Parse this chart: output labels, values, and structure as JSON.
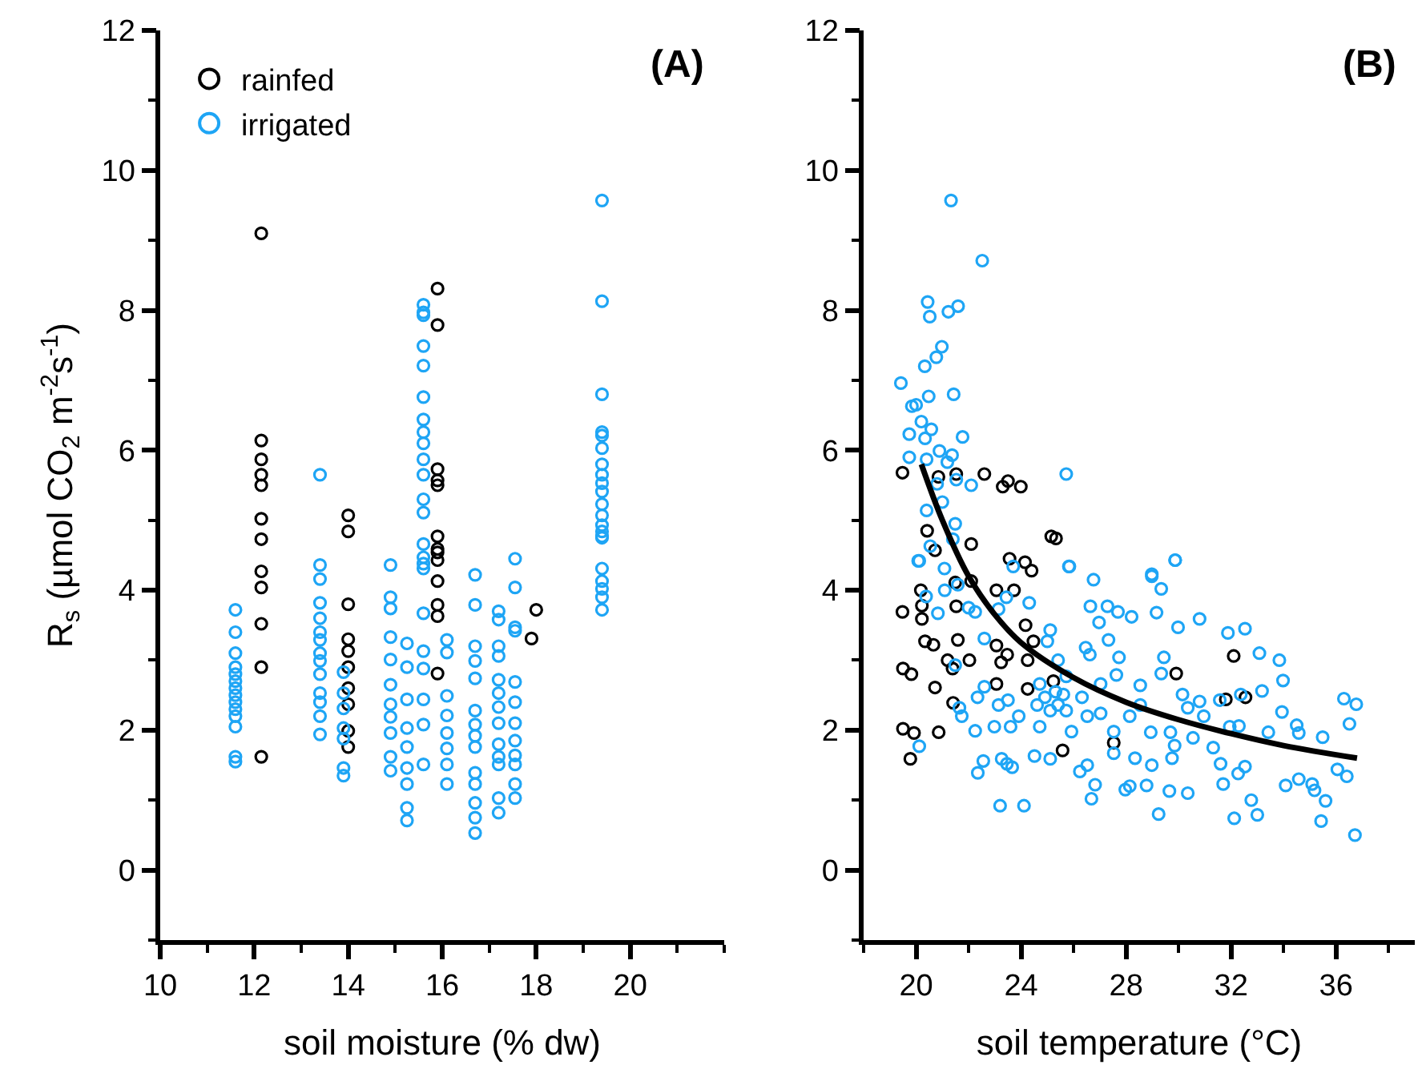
{
  "chart_data": [
    {
      "type": "scatter",
      "xlabel": "soil moisture (% dw)",
      "ylabel": "R$_{s}$ (µmol CO$_{2}$ m$^{-2}$s$^{-1}$)",
      "annotations": [
        "(A)"
      ],
      "xlim": [
        10,
        22
      ],
      "xticks": [
        10,
        12,
        14,
        16,
        18,
        20
      ],
      "ylim": [
        -1,
        12
      ],
      "yticks": [
        0,
        2,
        4,
        6,
        8,
        10,
        12
      ],
      "legend": "top left",
      "marker": "circle",
      "series": [
        {
          "name": "rainfed",
          "color": "#000000",
          "x": [
            12.15,
            12.15,
            12.15,
            12.15,
            12.15,
            12.15,
            12.15,
            12.15,
            12.15,
            12.15,
            12.15,
            12.15,
            14.0,
            14.0,
            14.0,
            14.0,
            14.0,
            14.0,
            14.0,
            14.0,
            14.0,
            14.0,
            15.9,
            15.9,
            15.9,
            15.9,
            15.9,
            15.9,
            15.9,
            15.9,
            15.9,
            15.9,
            15.9,
            15.9,
            15.9,
            17.9,
            18.0
          ],
          "values": [
            9.1,
            6.14,
            5.87,
            5.65,
            5.5,
            5.02,
            4.73,
            4.27,
            4.04,
            3.52,
            2.9,
            1.62,
            5.07,
            4.84,
            3.8,
            3.3,
            3.13,
            2.9,
            2.6,
            2.37,
            1.99,
            1.76,
            8.31,
            7.79,
            5.73,
            5.57,
            5.5,
            4.77,
            4.54,
            4.43,
            4.59,
            4.13,
            3.79,
            3.63,
            2.81,
            3.31,
            3.72
          ]
        },
        {
          "name": "irrigated",
          "color": "#1ea5f5",
          "x": [
            11.6,
            11.6,
            11.6,
            11.6,
            11.6,
            11.6,
            11.6,
            11.6,
            11.6,
            11.6,
            11.6,
            11.6,
            11.6,
            11.6,
            13.4,
            13.4,
            13.4,
            13.4,
            13.4,
            13.4,
            13.4,
            13.4,
            13.4,
            13.4,
            13.4,
            13.4,
            13.4,
            13.4,
            13.9,
            13.9,
            13.9,
            13.9,
            13.9,
            13.9,
            13.9,
            14.9,
            14.9,
            14.9,
            14.9,
            14.9,
            14.9,
            14.9,
            14.9,
            14.9,
            14.9,
            14.9,
            15.25,
            15.25,
            15.25,
            15.25,
            15.25,
            15.25,
            15.25,
            15.25,
            15.25,
            15.6,
            15.6,
            15.6,
            15.6,
            15.6,
            15.6,
            15.6,
            15.6,
            15.6,
            15.6,
            15.6,
            15.6,
            15.6,
            15.6,
            15.6,
            15.6,
            15.6,
            15.6,
            15.6,
            15.6,
            15.6,
            15.6,
            15.6,
            16.1,
            16.1,
            16.1,
            16.1,
            16.1,
            16.1,
            16.1,
            16.1,
            16.7,
            16.7,
            16.7,
            16.7,
            16.7,
            16.7,
            16.7,
            16.7,
            16.7,
            16.7,
            16.7,
            16.7,
            16.7,
            16.7,
            17.2,
            17.2,
            17.2,
            17.2,
            17.2,
            17.2,
            17.2,
            17.2,
            17.2,
            17.2,
            17.2,
            17.2,
            17.2,
            17.55,
            17.55,
            17.55,
            17.55,
            17.55,
            17.55,
            17.55,
            17.55,
            17.55,
            17.55,
            17.55,
            17.55,
            19.4,
            19.4,
            19.4,
            19.4,
            19.4,
            19.4,
            19.4,
            19.4,
            19.4,
            19.4,
            19.4,
            19.4,
            19.4,
            19.4,
            19.4,
            19.4,
            19.4,
            19.4,
            19.4,
            19.4,
            19.4
          ],
          "values": [
            3.72,
            3.4,
            3.1,
            2.9,
            2.8,
            2.7,
            2.6,
            2.5,
            2.4,
            2.3,
            2.2,
            2.05,
            1.62,
            1.55,
            5.65,
            4.36,
            4.16,
            3.82,
            3.6,
            3.4,
            3.29,
            3.1,
            2.99,
            2.8,
            2.53,
            2.4,
            2.2,
            1.94,
            2.83,
            2.53,
            2.31,
            2.03,
            1.88,
            1.46,
            1.35,
            4.36,
            3.9,
            3.74,
            3.33,
            3.01,
            2.65,
            2.37,
            2.19,
            1.96,
            1.62,
            1.42,
            3.24,
            2.9,
            2.44,
            2.03,
            1.76,
            1.46,
            1.23,
            0.89,
            0.71,
            8.08,
            7.97,
            7.93,
            7.49,
            7.21,
            6.76,
            6.44,
            6.26,
            6.1,
            5.87,
            5.65,
            5.3,
            5.11,
            4.66,
            4.47,
            4.31,
            4.38,
            3.67,
            3.13,
            2.88,
            2.44,
            2.08,
            1.51,
            3.29,
            3.11,
            2.49,
            2.21,
            1.96,
            1.74,
            1.51,
            1.23,
            4.22,
            3.79,
            3.2,
            2.99,
            2.74,
            2.28,
            2.08,
            1.92,
            1.76,
            1.39,
            1.23,
            0.96,
            0.75,
            0.53,
            3.7,
            3.58,
            3.2,
            3.06,
            2.72,
            2.53,
            2.33,
            2.1,
            1.8,
            1.62,
            1.51,
            1.03,
            0.82,
            4.45,
            4.04,
            3.47,
            3.42,
            2.69,
            2.4,
            2.1,
            1.85,
            1.64,
            1.51,
            1.23,
            1.03,
            9.57,
            8.13,
            6.8,
            6.26,
            6.21,
            6.03,
            5.8,
            5.65,
            5.53,
            5.41,
            5.23,
            5.07,
            4.93,
            4.77,
            4.84,
            4.75,
            4.31,
            4.13,
            4.02,
            3.9,
            3.72
          ]
        }
      ]
    },
    {
      "type": "scatter",
      "xlabel": "soil temperature (°C)",
      "annotations": [
        "(B)"
      ],
      "xlim": [
        18,
        39
      ],
      "xticks": [
        20,
        24,
        28,
        32,
        36
      ],
      "ylim": [
        -1,
        12
      ],
      "yticks": [
        0,
        2,
        4,
        6,
        8,
        10,
        12
      ],
      "marker": "circle",
      "series": [
        {
          "color": "#000000",
          "x": [
            19.48,
            20.85,
            21.53,
            22.6,
            23.3,
            23.5,
            23.99,
            25.15,
            25.33,
            20.42,
            20.72,
            22.1,
            23.56,
            24.15,
            24.4,
            19.48,
            20.22,
            20.22,
            20.18,
            21.53,
            21.49,
            22.1,
            23.06,
            23.73,
            24.17,
            20.34,
            20.66,
            21.59,
            23.06,
            23.47,
            24.47,
            21.2,
            22.03,
            21.39,
            24.25,
            23.24,
            19.5,
            19.82,
            20.72,
            23.06,
            24.25,
            25.23,
            21.41,
            19.5,
            19.92,
            20.86,
            19.78,
            25.58,
            27.53,
            32.1,
            31.8,
            32.55,
            29.91
          ],
          "values": [
            5.68,
            5.62,
            5.66,
            5.66,
            5.48,
            5.56,
            5.48,
            4.77,
            4.74,
            4.85,
            4.57,
            4.66,
            4.45,
            4.4,
            4.28,
            3.69,
            3.59,
            3.78,
            4.0,
            3.77,
            4.11,
            4.13,
            4.0,
            4.0,
            3.5,
            3.27,
            3.22,
            3.29,
            3.21,
            3.08,
            3.27,
            3.0,
            3.0,
            2.88,
            3.0,
            2.97,
            2.88,
            2.8,
            2.61,
            2.66,
            2.59,
            2.7,
            2.39,
            2.02,
            1.96,
            1.97,
            1.59,
            1.71,
            1.82,
            3.06,
            2.44,
            2.47,
            2.81
          ]
        },
        {
          "color": "#1ea5f5",
          "x": [
            21.33,
            22.52,
            20.44,
            20.52,
            21.23,
            21.6,
            20.98,
            20.77,
            20.33,
            19.42,
            20.48,
            21.43,
            19.84,
            20.0,
            20.2,
            19.74,
            20.58,
            20.34,
            21.77,
            20.89,
            21.37,
            19.74,
            20.4,
            21.19,
            21.53,
            22.1,
            25.72,
            20.8,
            20.4,
            21.0,
            21.49,
            21.4,
            20.54,
            20.12,
            21.08,
            23.7,
            25.84,
            29.87,
            28.98,
            20.08,
            20.38,
            20.83,
            21.09,
            21.59,
            22.0,
            22.25,
            22.6,
            23.14,
            23.44,
            24.31,
            25.11,
            25.82,
            26.76,
            26.64,
            26.97,
            27.29,
            27.69,
            28.21,
            28.98,
            29.34,
            29.87,
            29.16,
            29.98,
            30.8,
            31.88,
            32.53,
            33.08,
            33.84,
            33.98,
            33.18,
            33.42,
            33.94,
            34.5,
            34.58,
            35.49,
            36.3,
            36.77,
            36.51,
            36.41,
            36.05,
            35.6,
            35.43,
            36.72,
            34.08,
            34.58,
            35.09,
            35.18,
            32.77,
            33.0,
            32.12,
            32.27,
            32.53,
            31.7,
            31.6,
            31.32,
            31.95,
            32.3,
            30.96,
            30.8,
            30.35,
            30.15,
            29.69,
            29.75,
            29.85,
            30.35,
            29.24,
            29.65,
            28.98,
            28.78,
            28.14,
            27.97,
            26.68,
            26.82,
            26.52,
            26.24,
            25.92,
            25.72,
            26.32,
            27.03,
            27.63,
            28.54,
            29.34,
            29.44,
            27.73,
            27.33,
            26.62,
            26.46,
            25.0,
            25.41,
            24.71,
            24.91,
            24.61,
            25.11,
            25.41,
            24.71,
            23.91,
            23.5,
            23.14,
            23.6,
            22.98,
            22.34,
            22.6,
            21.74,
            22.25,
            22.56,
            22.35,
            23.26,
            23.46,
            23.66,
            23.2,
            24.11,
            24.51,
            25.11,
            20.12,
            21.65,
            21.49,
            25.31,
            25.72,
            26.52,
            27.03,
            27.53,
            28.14,
            28.54,
            28.94,
            28.34,
            27.53,
            30.55,
            31.57,
            32.37,
            25.61
          ],
          "values": [
            9.57,
            8.71,
            8.12,
            7.91,
            7.98,
            8.06,
            7.48,
            7.33,
            7.2,
            6.96,
            6.77,
            6.8,
            6.63,
            6.65,
            6.41,
            6.23,
            6.3,
            6.17,
            6.19,
            5.99,
            5.93,
            5.9,
            5.87,
            5.83,
            5.58,
            5.5,
            5.66,
            5.52,
            5.14,
            5.26,
            4.95,
            4.73,
            4.63,
            4.42,
            4.31,
            4.34,
            4.34,
            4.43,
            4.23,
            4.42,
            3.91,
            3.67,
            4.0,
            4.08,
            3.75,
            3.69,
            3.31,
            3.73,
            3.9,
            3.82,
            3.43,
            4.34,
            4.15,
            3.77,
            3.54,
            3.77,
            3.69,
            3.62,
            4.2,
            4.02,
            4.43,
            3.68,
            3.47,
            3.59,
            3.39,
            3.45,
            3.1,
            3.0,
            2.71,
            2.56,
            1.97,
            2.26,
            2.07,
            1.96,
            1.9,
            2.45,
            2.37,
            2.09,
            1.34,
            1.44,
            0.99,
            0.7,
            0.5,
            1.21,
            1.3,
            1.23,
            1.14,
            1.0,
            0.79,
            0.74,
            1.38,
            1.48,
            1.23,
            1.52,
            1.75,
            2.05,
            2.06,
            2.2,
            2.41,
            2.32,
            2.51,
            1.97,
            1.6,
            1.78,
            1.1,
            0.8,
            1.13,
            1.5,
            1.21,
            1.2,
            1.15,
            1.02,
            1.22,
            1.5,
            1.41,
            1.98,
            2.28,
            2.47,
            2.66,
            2.79,
            2.64,
            2.81,
            3.04,
            3.04,
            3.29,
            3.08,
            3.18,
            3.27,
            3.0,
            2.66,
            2.47,
            2.36,
            2.28,
            2.36,
            2.05,
            2.2,
            2.43,
            2.36,
            2.05,
            2.05,
            2.47,
            2.62,
            2.2,
            1.99,
            1.56,
            1.39,
            1.59,
            1.52,
            1.47,
            0.92,
            0.92,
            1.63,
            1.59,
            1.77,
            2.32,
            2.93,
            2.55,
            2.77,
            2.2,
            2.24,
            1.98,
            2.2,
            2.36,
            1.97,
            1.6,
            1.67,
            1.89,
            2.43,
            2.51,
            2.51
          ]
        },
        {
          "type": "line",
          "color": "#000000",
          "marker": "none",
          "line_style": "solid",
          "x": [
            20.2,
            21.0,
            22.0,
            23.0,
            24.0,
            26.0,
            28.0,
            30.0,
            32.0,
            34.0,
            36.8
          ],
          "values": [
            5.8,
            5.0,
            4.2,
            3.65,
            3.25,
            2.75,
            2.4,
            2.15,
            1.95,
            1.78,
            1.6
          ]
        }
      ]
    }
  ]
}
